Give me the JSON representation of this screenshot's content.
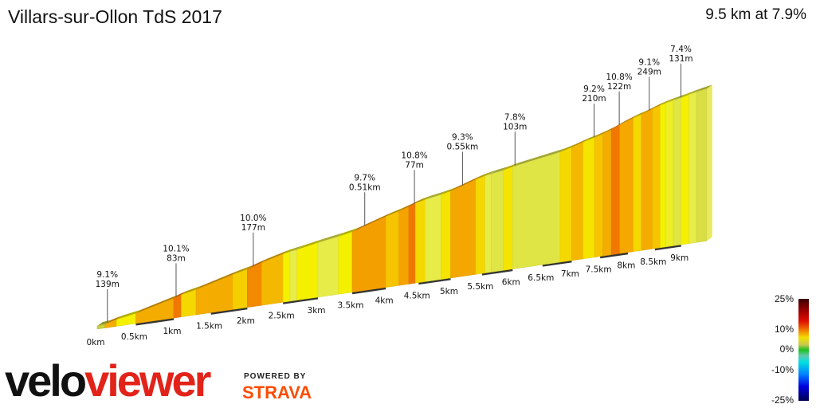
{
  "title": "Villars-sur-Ollon TdS 2017",
  "summary": "9.5 km at 7.9%",
  "chart_data": {
    "type": "area",
    "title": "Villars-sur-Ollon TdS 2017",
    "distance_km": 9.5,
    "avg_gradient_pct": 7.9,
    "x_ticks": [
      "0km",
      "0.5km",
      "1km",
      "1.5km",
      "2km",
      "2.5km",
      "3km",
      "3.5km",
      "4km",
      "4.5km",
      "5km",
      "5.5km",
      "6km",
      "6.5km",
      "7km",
      "7.5km",
      "8km",
      "8.5km",
      "9km"
    ],
    "segments": [
      {
        "from": 0,
        "to": 0.1,
        "grade": 3
      },
      {
        "from": 0.1,
        "to": 0.25,
        "grade": 9
      },
      {
        "from": 0.25,
        "to": 0.5,
        "grade": 6
      },
      {
        "from": 0.5,
        "to": 1.0,
        "grade": 9
      },
      {
        "from": 1.0,
        "to": 1.1,
        "grade": 11
      },
      {
        "from": 1.1,
        "to": 1.3,
        "grade": 7
      },
      {
        "from": 1.3,
        "to": 1.8,
        "grade": 9
      },
      {
        "from": 1.8,
        "to": 2.0,
        "grade": 7.5
      },
      {
        "from": 2.0,
        "to": 2.2,
        "grade": 10.5
      },
      {
        "from": 2.2,
        "to": 2.5,
        "grade": 8.5
      },
      {
        "from": 2.5,
        "to": 2.6,
        "grade": 6
      },
      {
        "from": 2.6,
        "to": 2.7,
        "grade": 5
      },
      {
        "from": 2.7,
        "to": 3.0,
        "grade": 6
      },
      {
        "from": 3.0,
        "to": 3.3,
        "grade": 5
      },
      {
        "from": 3.3,
        "to": 3.5,
        "grade": 6
      },
      {
        "from": 3.5,
        "to": 4.0,
        "grade": 9.7
      },
      {
        "from": 4.0,
        "to": 4.2,
        "grade": 8
      },
      {
        "from": 4.2,
        "to": 4.35,
        "grade": 9.5
      },
      {
        "from": 4.35,
        "to": 4.45,
        "grade": 11
      },
      {
        "from": 4.45,
        "to": 4.6,
        "grade": 7
      },
      {
        "from": 4.6,
        "to": 4.85,
        "grade": 5
      },
      {
        "from": 4.85,
        "to": 5.0,
        "grade": 6.5
      },
      {
        "from": 5.0,
        "to": 5.4,
        "grade": 9.3
      },
      {
        "from": 5.4,
        "to": 5.55,
        "grade": 7
      },
      {
        "from": 5.55,
        "to": 5.65,
        "grade": 5
      },
      {
        "from": 5.65,
        "to": 5.85,
        "grade": 4.5
      },
      {
        "from": 5.85,
        "to": 6.0,
        "grade": 6.5
      },
      {
        "from": 6.0,
        "to": 6.8,
        "grade": 4.5
      },
      {
        "from": 6.8,
        "to": 7.0,
        "grade": 7
      },
      {
        "from": 7.0,
        "to": 7.2,
        "grade": 8.5
      },
      {
        "from": 7.2,
        "to": 7.4,
        "grade": 6.5
      },
      {
        "from": 7.4,
        "to": 7.55,
        "grade": 8
      },
      {
        "from": 7.55,
        "to": 7.7,
        "grade": 9
      },
      {
        "from": 7.7,
        "to": 7.85,
        "grade": 11
      },
      {
        "from": 7.85,
        "to": 8.1,
        "grade": 9.2
      },
      {
        "from": 8.1,
        "to": 8.25,
        "grade": 7
      },
      {
        "from": 8.25,
        "to": 8.45,
        "grade": 9
      },
      {
        "from": 8.45,
        "to": 8.6,
        "grade": 8
      },
      {
        "from": 8.6,
        "to": 8.7,
        "grade": 6
      },
      {
        "from": 8.7,
        "to": 8.85,
        "grade": 5.5
      },
      {
        "from": 8.85,
        "to": 9.0,
        "grade": 4.5
      },
      {
        "from": 9.0,
        "to": 9.15,
        "grade": 6
      },
      {
        "from": 9.15,
        "to": 9.3,
        "grade": 5
      },
      {
        "from": 9.3,
        "to": 9.5,
        "grade": 4
      }
    ],
    "annotations": [
      {
        "at_km": 0.1,
        "grade": "9.1%",
        "length": "139m"
      },
      {
        "at_km": 1.0,
        "grade": "10.1%",
        "length": "83m"
      },
      {
        "at_km": 2.05,
        "grade": "10.0%",
        "length": "177m"
      },
      {
        "at_km": 3.65,
        "grade": "9.7%",
        "length": "0.51km"
      },
      {
        "at_km": 4.4,
        "grade": "10.8%",
        "length": "77m"
      },
      {
        "at_km": 5.15,
        "grade": "9.3%",
        "length": "0.55km"
      },
      {
        "at_km": 6.0,
        "grade": "7.8%",
        "length": "103m"
      },
      {
        "at_km": 7.35,
        "grade": "9.2%",
        "length": "210m"
      },
      {
        "at_km": 7.8,
        "grade": "10.8%",
        "length": "122m"
      },
      {
        "at_km": 8.35,
        "grade": "9.1%",
        "length": "249m"
      },
      {
        "at_km": 8.95,
        "grade": "7.4%",
        "length": "131m"
      }
    ],
    "legend": {
      "labels": [
        "25%",
        "10%",
        "0%",
        "-10%",
        "-25%"
      ],
      "placement": "bottom-right"
    }
  },
  "branding": {
    "velo": "velo",
    "viewer": "viewer",
    "powered_by": "POWERED BY",
    "strava": "STRAVA"
  }
}
